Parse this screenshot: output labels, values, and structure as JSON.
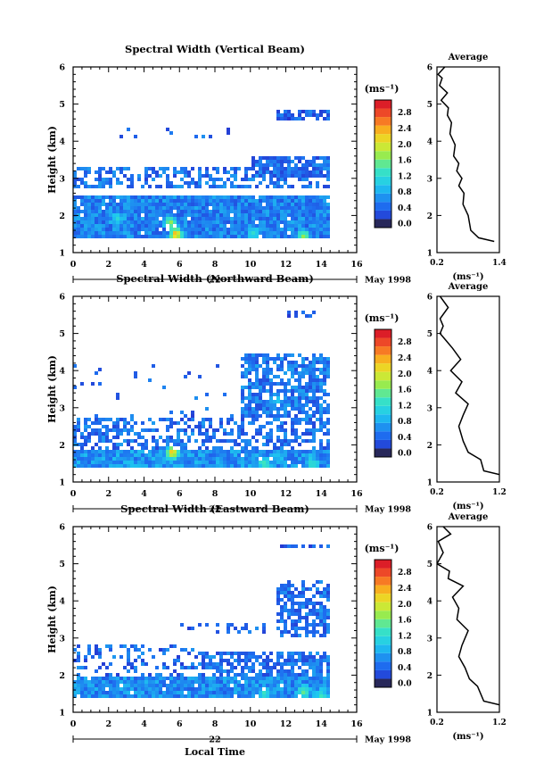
{
  "chart_data": [
    {
      "type": "heatmap",
      "title": "Spectral Width (Vertical Beam)",
      "ylabel": "Height (km)",
      "x_ticks": [
        "0",
        "2",
        "4",
        "6",
        "8",
        "10",
        "12",
        "14",
        "16"
      ],
      "y_ticks": [
        "1",
        "2",
        "3",
        "4",
        "5",
        "6"
      ],
      "xlim": [
        0,
        16
      ],
      "ylim": [
        1,
        6
      ],
      "date_label": "22",
      "month_label": "May 1998",
      "colorbar": {
        "unit": "(ms⁻¹)",
        "ticks": [
          "0.0",
          "0.4",
          "0.8",
          "1.2",
          "1.6",
          "2.0",
          "2.4",
          "2.8"
        ],
        "range": [
          0.0,
          3.0
        ]
      },
      "profile": {
        "title": "Average",
        "xlabel": "(ms⁻¹)",
        "x_ticks": [
          "0.2",
          "1.4"
        ],
        "xlim": [
          0.2,
          1.4
        ],
        "y_ticks": [
          "1",
          "2",
          "3",
          "4",
          "5",
          "6"
        ],
        "points": [
          [
            1.3,
            1.3
          ],
          [
            1.0,
            1.4
          ],
          [
            0.85,
            1.6
          ],
          [
            0.8,
            2.0
          ],
          [
            0.7,
            2.3
          ],
          [
            0.72,
            2.6
          ],
          [
            0.62,
            2.8
          ],
          [
            0.68,
            3.0
          ],
          [
            0.58,
            3.2
          ],
          [
            0.62,
            3.4
          ],
          [
            0.52,
            3.6
          ],
          [
            0.55,
            3.9
          ],
          [
            0.45,
            4.2
          ],
          [
            0.48,
            4.5
          ],
          [
            0.4,
            4.7
          ],
          [
            0.42,
            4.9
          ],
          [
            0.28,
            5.1
          ],
          [
            0.4,
            5.3
          ],
          [
            0.25,
            5.5
          ],
          [
            0.3,
            5.7
          ],
          [
            0.22,
            5.8
          ],
          [
            0.35,
            6.0
          ]
        ]
      },
      "bands": [
        {
          "t0": 0.0,
          "t1": 14.5,
          "h0": 1.4,
          "h1": 2.5,
          "v": 0.55,
          "cov": 0.96
        },
        {
          "t0": 0.0,
          "t1": 14.5,
          "h0": 2.7,
          "h1": 3.3,
          "v": 0.45,
          "cov": 0.5
        },
        {
          "t0": 10.0,
          "t1": 14.5,
          "h0": 3.0,
          "h1": 3.6,
          "v": 0.4,
          "cov": 0.8
        },
        {
          "t0": 11.5,
          "t1": 14.5,
          "h0": 4.6,
          "h1": 4.8,
          "v": 0.35,
          "cov": 0.8
        },
        {
          "t0": 2.0,
          "t1": 9.0,
          "h0": 4.1,
          "h1": 4.4,
          "v": 0.4,
          "cov": 0.1
        }
      ],
      "hotspots": [
        [
          5.8,
          1.5,
          2.6
        ],
        [
          5.5,
          1.8,
          1.8
        ],
        [
          10.2,
          1.5,
          1.3
        ],
        [
          13.0,
          1.45,
          1.8
        ],
        [
          2.5,
          1.9,
          1.2
        ]
      ]
    },
    {
      "type": "heatmap",
      "title": "Spectral Width (Northward Beam)",
      "ylabel": "Height (km)",
      "x_ticks": [
        "0",
        "2",
        "4",
        "6",
        "8",
        "10",
        "12",
        "14",
        "16"
      ],
      "y_ticks": [
        "1",
        "2",
        "3",
        "4",
        "5",
        "6"
      ],
      "xlim": [
        0,
        16
      ],
      "ylim": [
        1,
        6
      ],
      "date_label": "22",
      "month_label": "May 1998",
      "colorbar": {
        "unit": "(ms⁻¹)",
        "ticks": [
          "0.0",
          "0.4",
          "0.8",
          "1.2",
          "1.6",
          "2.0",
          "2.4",
          "2.8"
        ],
        "range": [
          0.0,
          3.0
        ]
      },
      "profile": {
        "title": "Average",
        "xlabel": "(ms⁻¹)",
        "x_ticks": [
          "0.2",
          "1.2"
        ],
        "xlim": [
          0.2,
          1.2
        ],
        "y_ticks": [
          "1",
          "2",
          "3",
          "4",
          "5",
          "6"
        ],
        "points": [
          [
            1.2,
            1.2
          ],
          [
            0.95,
            1.3
          ],
          [
            0.9,
            1.6
          ],
          [
            0.7,
            1.8
          ],
          [
            0.62,
            2.1
          ],
          [
            0.55,
            2.5
          ],
          [
            0.62,
            2.8
          ],
          [
            0.7,
            3.1
          ],
          [
            0.5,
            3.4
          ],
          [
            0.6,
            3.7
          ],
          [
            0.42,
            4.0
          ],
          [
            0.58,
            4.3
          ],
          [
            0.45,
            4.6
          ],
          [
            0.35,
            4.8
          ],
          [
            0.25,
            5.0
          ],
          [
            0.3,
            5.2
          ],
          [
            0.25,
            5.4
          ],
          [
            0.38,
            5.7
          ],
          [
            0.25,
            6.0
          ]
        ]
      },
      "bands": [
        {
          "t0": 0.0,
          "t1": 14.5,
          "h0": 1.4,
          "h1": 1.9,
          "v": 0.65,
          "cov": 0.98
        },
        {
          "t0": 0.0,
          "t1": 14.5,
          "h0": 1.9,
          "h1": 2.7,
          "v": 0.45,
          "cov": 0.45
        },
        {
          "t0": 9.5,
          "t1": 14.5,
          "h0": 2.7,
          "h1": 4.5,
          "v": 0.5,
          "cov": 0.75
        },
        {
          "t0": 0.0,
          "t1": 9.0,
          "h0": 2.6,
          "h1": 4.2,
          "v": 0.4,
          "cov": 0.05
        },
        {
          "t0": 12.0,
          "t1": 14.5,
          "h0": 5.4,
          "h1": 5.6,
          "v": 0.35,
          "cov": 0.55
        }
      ],
      "hotspots": [
        [
          5.6,
          1.8,
          2.4
        ],
        [
          10.8,
          1.5,
          1.5
        ],
        [
          13.5,
          1.5,
          1.3
        ],
        [
          11.5,
          3.2,
          1.1
        ]
      ]
    },
    {
      "type": "heatmap",
      "title": "Spectral Width (Eastward Beam)",
      "ylabel": "Height (km)",
      "xlabel": "Local Time",
      "x_ticks": [
        "0",
        "2",
        "4",
        "6",
        "8",
        "10",
        "12",
        "14",
        "16"
      ],
      "y_ticks": [
        "1",
        "2",
        "3",
        "4",
        "5",
        "6"
      ],
      "xlim": [
        0,
        16
      ],
      "ylim": [
        1,
        6
      ],
      "date_label": "22",
      "month_label": "May 1998",
      "colorbar": {
        "unit": "(ms⁻¹)",
        "ticks": [
          "0.0",
          "0.4",
          "0.8",
          "1.2",
          "1.6",
          "2.0",
          "2.4",
          "2.8"
        ],
        "range": [
          0.0,
          3.0
        ]
      },
      "profile": {
        "title": "Average",
        "xlabel": "(ms⁻¹)",
        "x_ticks": [
          "0.2",
          "1.2"
        ],
        "xlim": [
          0.2,
          1.2
        ],
        "y_ticks": [
          "1",
          "2",
          "3",
          "4",
          "5",
          "6"
        ],
        "points": [
          [
            1.2,
            1.2
          ],
          [
            0.95,
            1.3
          ],
          [
            0.85,
            1.7
          ],
          [
            0.72,
            1.9
          ],
          [
            0.65,
            2.2
          ],
          [
            0.55,
            2.5
          ],
          [
            0.6,
            2.8
          ],
          [
            0.7,
            3.2
          ],
          [
            0.52,
            3.5
          ],
          [
            0.55,
            3.8
          ],
          [
            0.45,
            4.1
          ],
          [
            0.62,
            4.4
          ],
          [
            0.38,
            4.6
          ],
          [
            0.4,
            4.8
          ],
          [
            0.2,
            5.0
          ],
          [
            0.3,
            5.3
          ],
          [
            0.22,
            5.6
          ],
          [
            0.42,
            5.8
          ],
          [
            0.3,
            6.0
          ]
        ]
      },
      "bands": [
        {
          "t0": 0.0,
          "t1": 14.5,
          "h0": 1.4,
          "h1": 2.0,
          "v": 0.6,
          "cov": 0.97
        },
        {
          "t0": 7.0,
          "t1": 14.5,
          "h0": 2.0,
          "h1": 2.6,
          "v": 0.45,
          "cov": 0.7
        },
        {
          "t0": 0.0,
          "t1": 7.0,
          "h0": 2.0,
          "h1": 2.8,
          "v": 0.4,
          "cov": 0.25
        },
        {
          "t0": 11.5,
          "t1": 14.5,
          "h0": 3.0,
          "h1": 4.6,
          "v": 0.45,
          "cov": 0.65
        },
        {
          "t0": 6.0,
          "t1": 11.0,
          "h0": 3.1,
          "h1": 3.4,
          "v": 0.4,
          "cov": 0.3
        },
        {
          "t0": 11.5,
          "t1": 14.5,
          "h0": 5.4,
          "h1": 5.5,
          "v": 0.35,
          "cov": 0.6
        }
      ],
      "hotspots": [
        [
          10.8,
          1.5,
          1.4
        ],
        [
          13.0,
          1.55,
          1.6
        ],
        [
          14.0,
          1.45,
          1.4
        ]
      ]
    }
  ]
}
